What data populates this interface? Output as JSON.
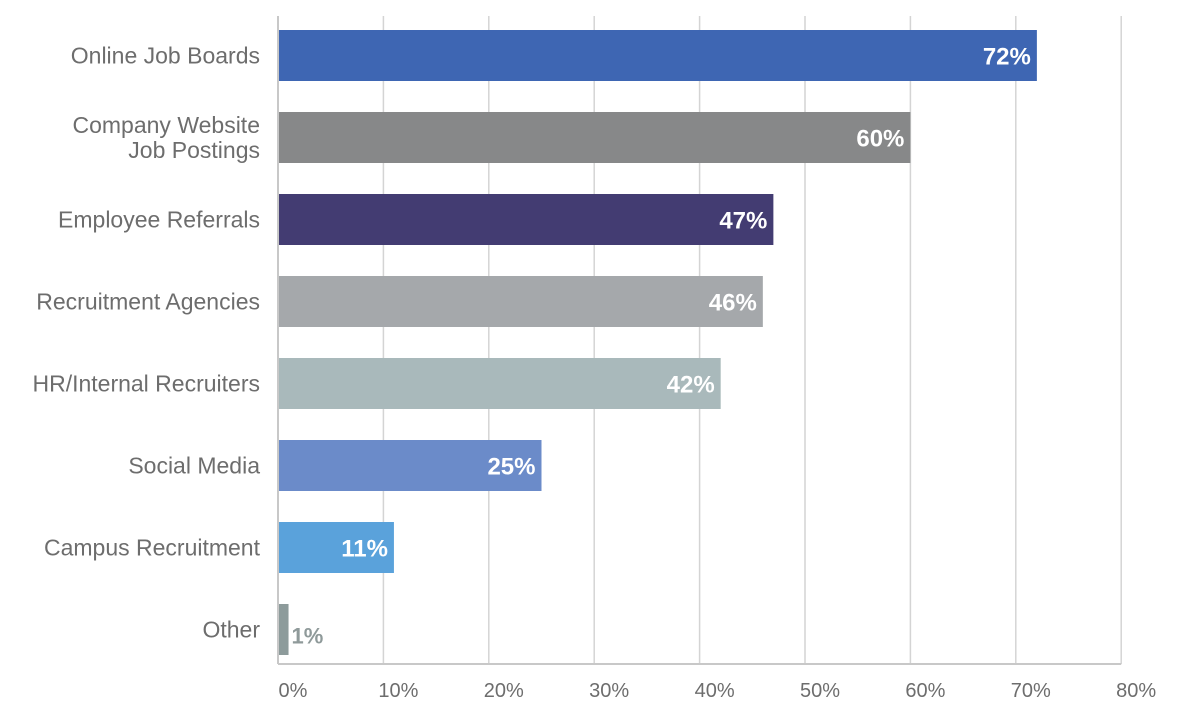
{
  "chart_data": {
    "type": "bar",
    "orientation": "horizontal",
    "categories": [
      [
        "Online Job Boards"
      ],
      [
        "Company Website",
        "Job Postings"
      ],
      [
        "Employee Referrals"
      ],
      [
        "Recruitment Agencies"
      ],
      [
        "HR/Internal Recruiters"
      ],
      [
        "Social Media"
      ],
      [
        "Campus Recruitment"
      ],
      [
        "Other"
      ]
    ],
    "values": [
      72,
      60,
      47,
      46,
      42,
      25,
      11,
      1
    ],
    "value_labels": [
      "72%",
      "60%",
      "47%",
      "46%",
      "42%",
      "25%",
      "11%",
      "1%"
    ],
    "colors": [
      "#3e66b3",
      "#878889",
      "#433c72",
      "#a5a8ab",
      "#a9b9bb",
      "#6b8bc9",
      "#5aa2db",
      "#8d9b9b"
    ],
    "xlim": [
      0,
      80
    ],
    "xticks": [
      0,
      10,
      20,
      30,
      40,
      50,
      60,
      70,
      80
    ],
    "xtick_labels": [
      "0%",
      "10%",
      "20%",
      "30%",
      "40%",
      "50%",
      "60%",
      "70%",
      "80%"
    ],
    "grid": true,
    "title": "",
    "xlabel": "",
    "ylabel": ""
  }
}
